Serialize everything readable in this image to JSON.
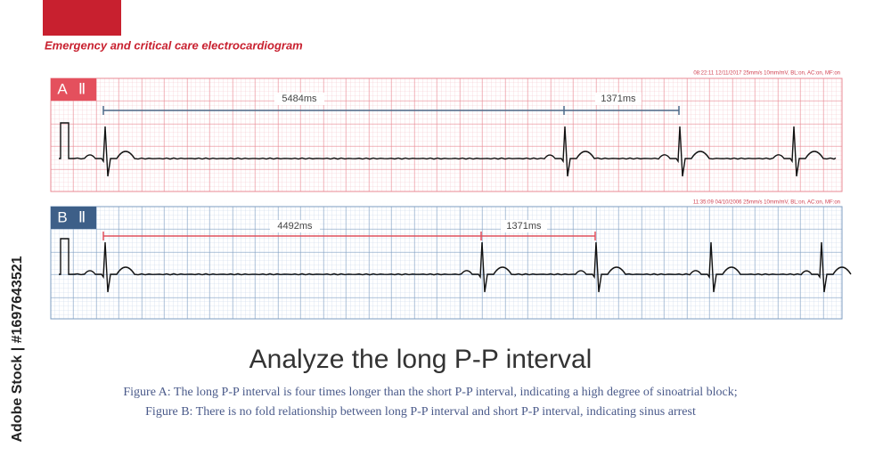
{
  "header": {
    "subtitle": "Emergency and critical care electrocardiogram"
  },
  "panels": [
    {
      "label": "A",
      "lead": "Ⅱ",
      "info": "08:22:11 12/11/2017 25mm/s 10mm/mV, BL:on, AC:on, MF:on",
      "intervals": [
        "5484ms",
        "1371ms"
      ]
    },
    {
      "label": "B",
      "lead": "Ⅱ",
      "info": "11:35:09 04/10/2006 25mm/s 10mm/mV, BL:on, AC:on, MF:on",
      "intervals": [
        "4492ms",
        "1371ms"
      ]
    }
  ],
  "title": "Analyze the long P-P interval",
  "caption": [
    "Figure A: The long P-P interval is four times longer than the short P-P interval, indicating a high degree of sinoatrial block;",
    "Figure B: There is no fold relationship between long P-P interval and short P-P interval, indicating sinus arrest"
  ],
  "watermark": "Adobe Stock | #1697643521"
}
